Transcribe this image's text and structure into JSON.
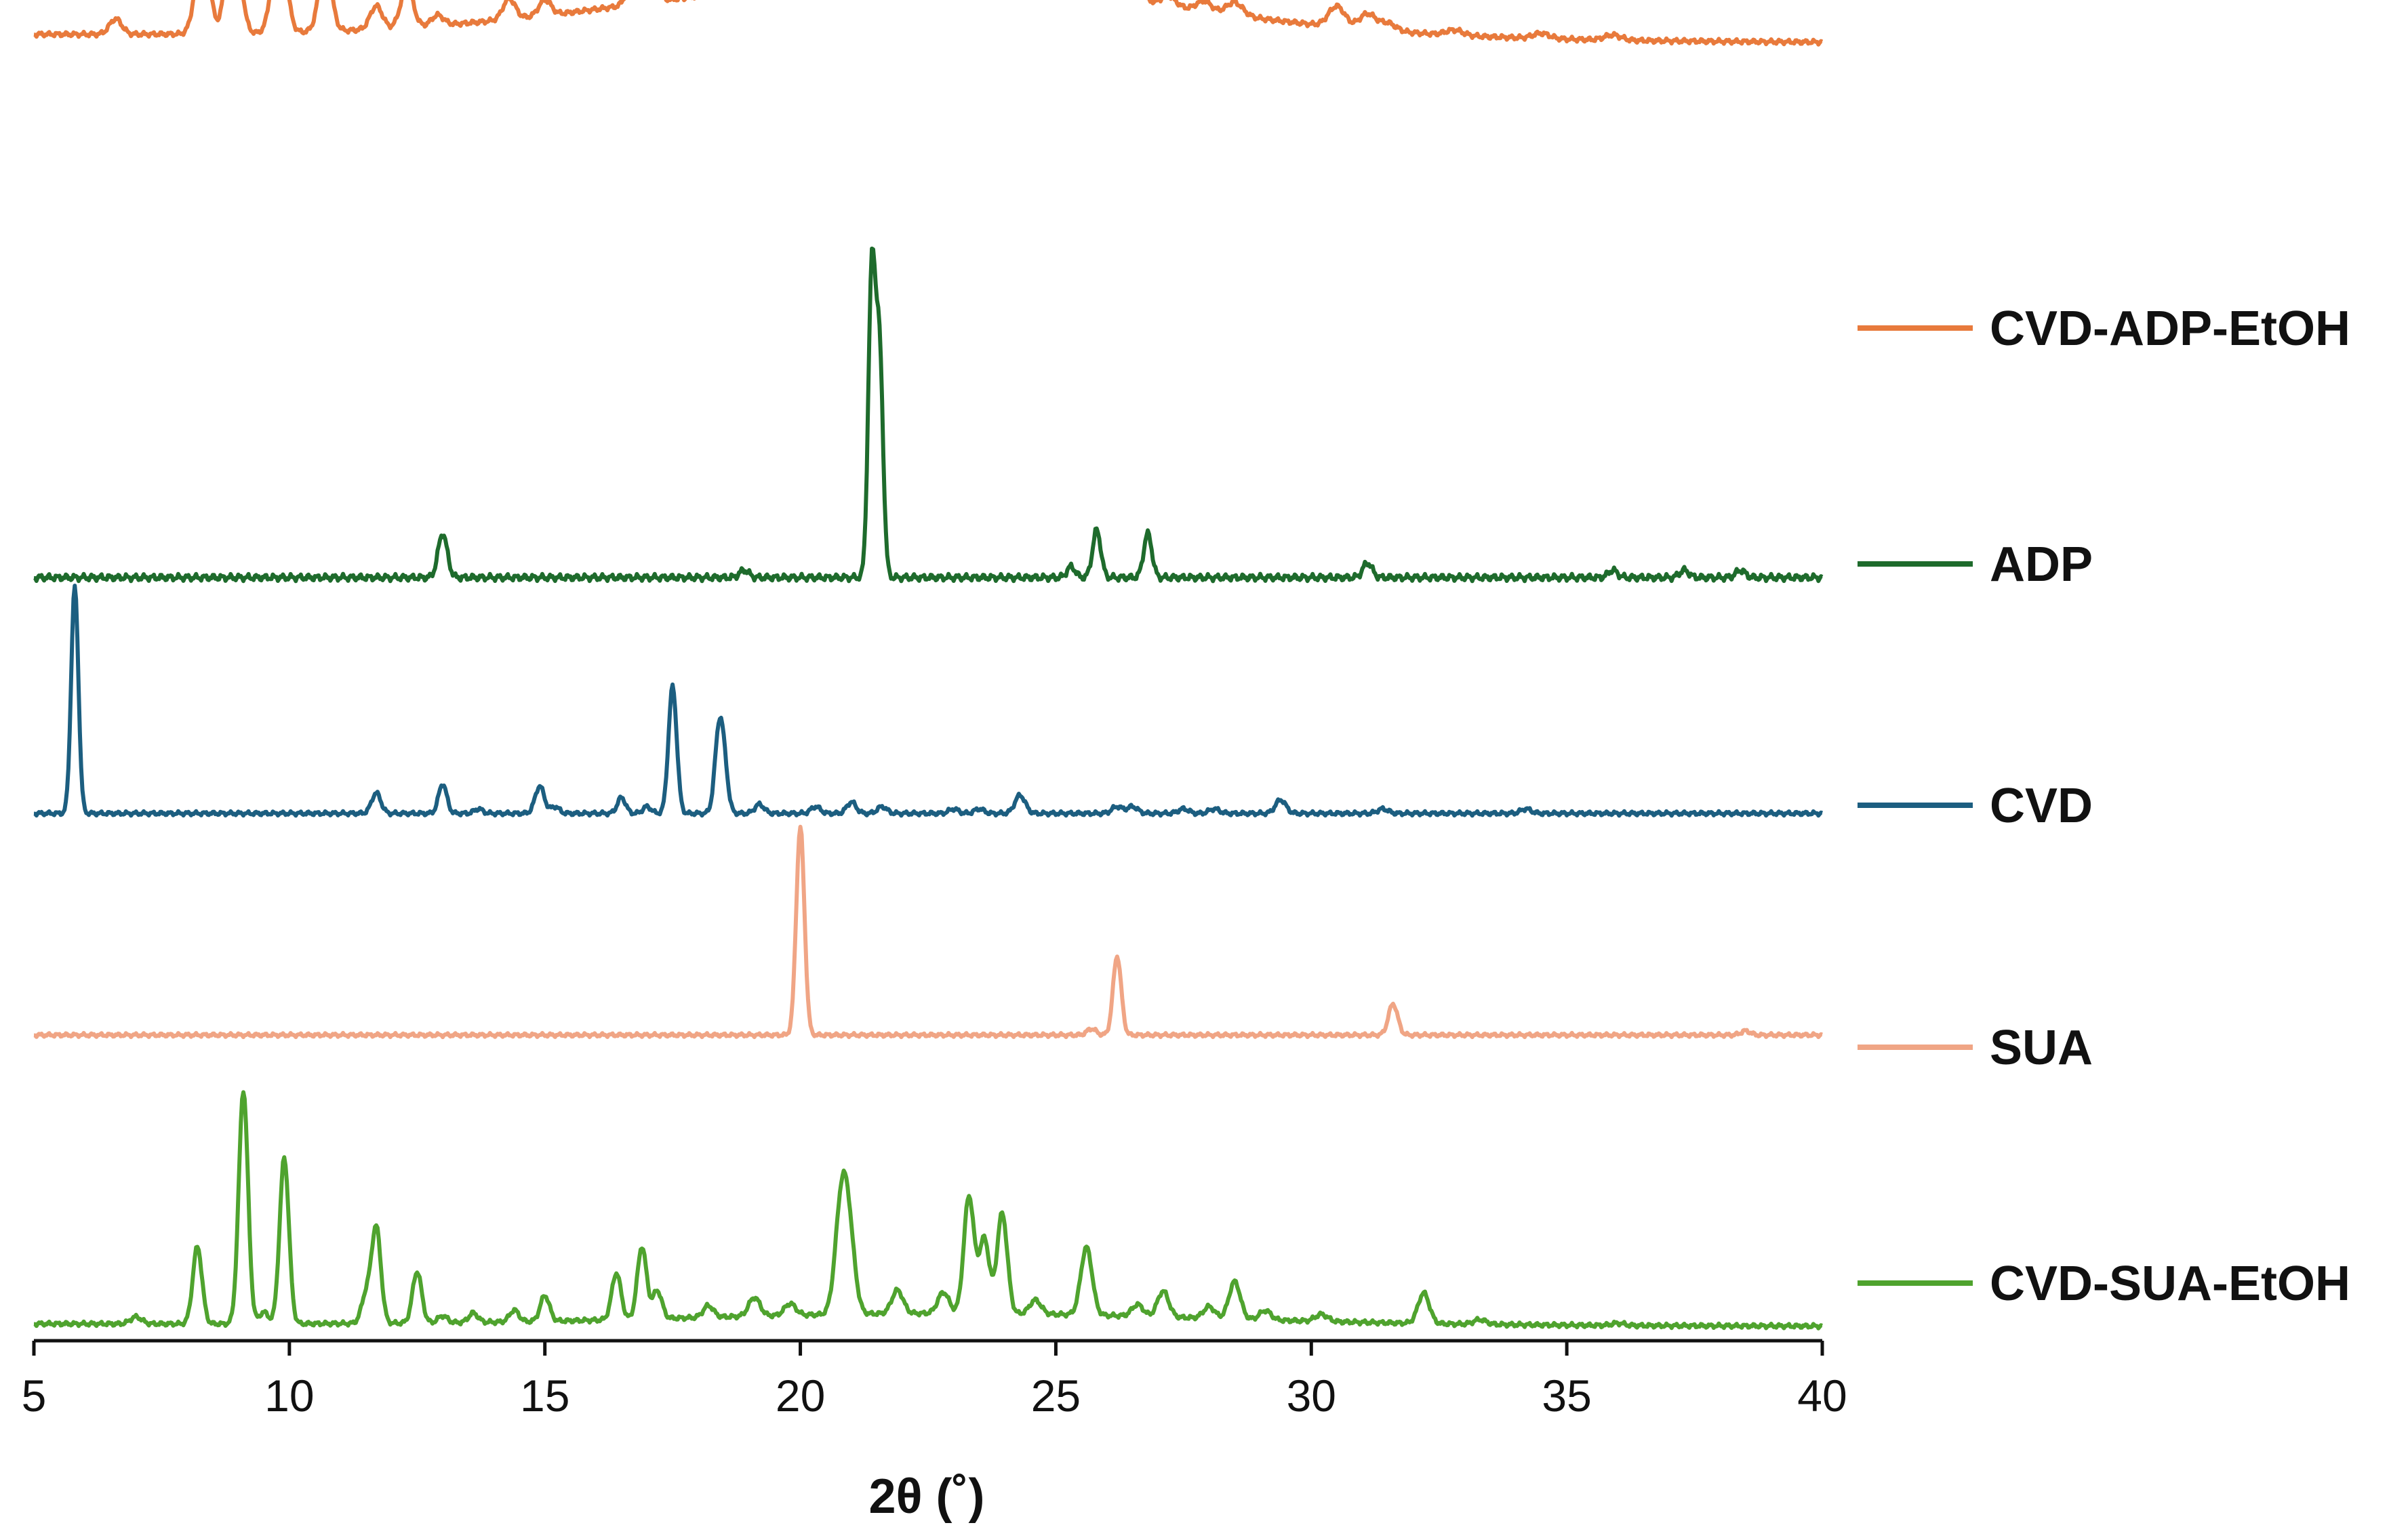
{
  "chart_data": {
    "type": "line",
    "title": "",
    "xlabel": "2θ (˚)",
    "ylabel": "",
    "xlim": [
      5,
      40
    ],
    "xticks": [
      "5",
      "10",
      "15",
      "20",
      "25",
      "30",
      "35",
      "40"
    ],
    "grid": false,
    "legend_placement": "right, one entry beside each trace",
    "stacked_offset": true,
    "series": [
      {
        "name": "CVD-ADP-EtOH",
        "color": "#E87A3C",
        "baseline": 0.94,
        "slope": -0.03,
        "hump": {
          "center": 22.0,
          "width": 5.0,
          "height": 0.22
        },
        "peaks": [
          [
            6.6,
            0.06,
            0.12
          ],
          [
            8.3,
            0.36,
            0.13
          ],
          [
            8.9,
            0.47,
            0.13
          ],
          [
            9.8,
            0.41,
            0.13
          ],
          [
            10.7,
            0.27,
            0.12
          ],
          [
            11.7,
            0.09,
            0.12
          ],
          [
            12.3,
            0.16,
            0.12
          ],
          [
            12.9,
            0.04,
            0.12
          ],
          [
            14.3,
            0.08,
            0.12
          ],
          [
            15.0,
            0.06,
            0.12
          ],
          [
            16.8,
            0.2,
            0.13
          ],
          [
            17.0,
            0.35,
            0.13
          ],
          [
            18.5,
            0.11,
            0.14
          ],
          [
            19.2,
            0.05,
            0.14
          ],
          [
            19.9,
            0.4,
            0.14
          ],
          [
            20.3,
            0.34,
            0.14
          ],
          [
            20.9,
            0.12,
            0.14
          ],
          [
            21.4,
            0.56,
            0.13
          ],
          [
            21.6,
            0.33,
            0.13
          ],
          [
            22.2,
            0.43,
            0.14
          ],
          [
            23.3,
            0.45,
            0.14
          ],
          [
            24.3,
            0.32,
            0.14
          ],
          [
            24.6,
            0.1,
            0.14
          ],
          [
            26.1,
            0.12,
            0.15
          ],
          [
            26.6,
            0.04,
            0.15
          ],
          [
            27.2,
            0.04,
            0.15
          ],
          [
            27.9,
            0.04,
            0.15
          ],
          [
            28.5,
            0.05,
            0.16
          ],
          [
            30.5,
            0.08,
            0.16
          ],
          [
            31.1,
            0.06,
            0.16
          ],
          [
            31.5,
            0.03,
            0.16
          ],
          [
            32.8,
            0.02,
            0.16
          ],
          [
            34.5,
            0.02,
            0.16
          ],
          [
            35.9,
            0.02,
            0.16
          ]
        ]
      },
      {
        "name": "ADP",
        "color": "#1E6B2C",
        "baseline": 0.0,
        "slope": 0.0,
        "hump": null,
        "peaks": [
          [
            13.0,
            0.12,
            0.09
          ],
          [
            18.9,
            0.02,
            0.09
          ],
          [
            21.4,
            0.83,
            0.07
          ],
          [
            21.55,
            0.6,
            0.07
          ],
          [
            25.3,
            0.03,
            0.08
          ],
          [
            25.8,
            0.13,
            0.08
          ],
          [
            26.8,
            0.12,
            0.08
          ],
          [
            31.1,
            0.04,
            0.09
          ],
          [
            35.9,
            0.02,
            0.09
          ],
          [
            37.3,
            0.02,
            0.09
          ],
          [
            38.4,
            0.02,
            0.09
          ]
        ]
      },
      {
        "name": "CVD",
        "color": "#1C5E80",
        "baseline": 0.0,
        "slope": 0.0,
        "hump": null,
        "peaks": [
          [
            5.8,
            1.0,
            0.07
          ],
          [
            11.7,
            0.09,
            0.09
          ],
          [
            13.0,
            0.13,
            0.08
          ],
          [
            13.7,
            0.02,
            0.08
          ],
          [
            14.9,
            0.12,
            0.09
          ],
          [
            15.2,
            0.03,
            0.08
          ],
          [
            16.5,
            0.07,
            0.08
          ],
          [
            17.0,
            0.03,
            0.08
          ],
          [
            17.5,
            0.56,
            0.08
          ],
          [
            18.4,
            0.31,
            0.08
          ],
          [
            18.5,
            0.2,
            0.08
          ],
          [
            19.2,
            0.04,
            0.09
          ],
          [
            20.3,
            0.03,
            0.09
          ],
          [
            21.0,
            0.05,
            0.09
          ],
          [
            21.6,
            0.03,
            0.09
          ],
          [
            23.0,
            0.02,
            0.09
          ],
          [
            23.5,
            0.02,
            0.09
          ],
          [
            24.3,
            0.08,
            0.1
          ],
          [
            26.2,
            0.03,
            0.1
          ],
          [
            26.5,
            0.03,
            0.1
          ],
          [
            27.5,
            0.02,
            0.1
          ],
          [
            28.1,
            0.02,
            0.1
          ],
          [
            29.4,
            0.06,
            0.1
          ],
          [
            31.4,
            0.02,
            0.1
          ],
          [
            34.2,
            0.02,
            0.1
          ]
        ]
      },
      {
        "name": "SUA",
        "color": "#F0A585",
        "baseline": 0.0,
        "slope": 0.0,
        "hump": null,
        "peaks": [
          [
            20.0,
            1.0,
            0.08
          ],
          [
            25.7,
            0.03,
            0.09
          ],
          [
            26.2,
            0.38,
            0.08
          ],
          [
            31.6,
            0.15,
            0.09
          ],
          [
            38.5,
            0.02,
            0.09
          ]
        ]
      },
      {
        "name": "CVD-SUA-EtOH",
        "color": "#4FA32E",
        "baseline": 0.0,
        "slope": -0.01,
        "hump": {
          "center": 23.0,
          "width": 5.0,
          "height": 0.05
        },
        "peaks": [
          [
            7.0,
            0.03,
            0.11
          ],
          [
            8.2,
            0.33,
            0.09
          ],
          [
            9.1,
            1.0,
            0.09
          ],
          [
            9.5,
            0.05,
            0.09
          ],
          [
            9.9,
            0.71,
            0.09
          ],
          [
            11.5,
            0.12,
            0.09
          ],
          [
            11.7,
            0.41,
            0.09
          ],
          [
            12.5,
            0.22,
            0.09
          ],
          [
            13.0,
            0.03,
            0.09
          ],
          [
            13.6,
            0.04,
            0.09
          ],
          [
            14.4,
            0.05,
            0.09
          ],
          [
            15.0,
            0.11,
            0.09
          ],
          [
            16.4,
            0.2,
            0.09
          ],
          [
            16.9,
            0.31,
            0.09
          ],
          [
            17.2,
            0.12,
            0.09
          ],
          [
            18.2,
            0.05,
            0.1
          ],
          [
            19.1,
            0.08,
            0.11
          ],
          [
            19.8,
            0.05,
            0.11
          ],
          [
            20.8,
            0.43,
            0.12
          ],
          [
            20.95,
            0.3,
            0.12
          ],
          [
            21.9,
            0.1,
            0.11
          ],
          [
            22.8,
            0.09,
            0.11
          ],
          [
            23.3,
            0.5,
            0.1
          ],
          [
            23.6,
            0.32,
            0.1
          ],
          [
            23.95,
            0.43,
            0.1
          ],
          [
            24.6,
            0.06,
            0.11
          ],
          [
            25.6,
            0.29,
            0.11
          ],
          [
            26.6,
            0.05,
            0.11
          ],
          [
            27.1,
            0.11,
            0.11
          ],
          [
            28.0,
            0.05,
            0.11
          ],
          [
            28.5,
            0.16,
            0.11
          ],
          [
            29.1,
            0.04,
            0.11
          ],
          [
            30.2,
            0.03,
            0.12
          ],
          [
            32.2,
            0.13,
            0.11
          ],
          [
            33.3,
            0.02,
            0.12
          ],
          [
            36.0,
            0.01,
            0.12
          ]
        ]
      }
    ]
  }
}
